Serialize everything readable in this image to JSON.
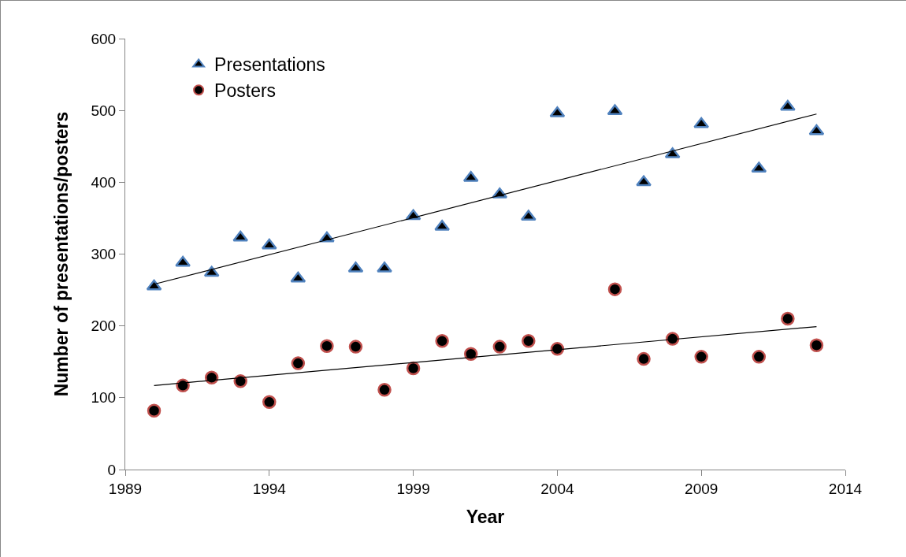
{
  "chart_data": {
    "type": "scatter",
    "xlabel": "Year",
    "ylabel": "Number of presentations/posters",
    "xlim": [
      1989,
      2014
    ],
    "xticks": [
      1989,
      1994,
      1999,
      2004,
      2009,
      2014
    ],
    "ylim": [
      0,
      600
    ],
    "yticks": [
      0,
      100,
      200,
      300,
      400,
      500,
      600
    ],
    "grid": false,
    "legend": "top left",
    "series": [
      {
        "name": "Presentations",
        "marker": "triangle",
        "color": "#4f81bd",
        "x": [
          1990,
          1991,
          1992,
          1993,
          1994,
          1995,
          1996,
          1997,
          1998,
          1999,
          2000,
          2001,
          2002,
          2003,
          2004,
          2006,
          2007,
          2008,
          2009,
          2011,
          2012,
          2013
        ],
        "values": [
          255,
          288,
          274,
          323,
          312,
          266,
          322,
          280,
          280,
          353,
          338,
          406,
          383,
          352,
          496,
          499,
          400,
          439,
          481,
          419,
          505,
          471
        ]
      },
      {
        "name": "Posters",
        "marker": "circle",
        "color": "#c0504d",
        "x": [
          1990,
          1991,
          1992,
          1993,
          1994,
          1995,
          1996,
          1997,
          1998,
          1999,
          2000,
          2001,
          2002,
          2003,
          2004,
          2006,
          2007,
          2008,
          2009,
          2011,
          2012,
          2013
        ],
        "values": [
          82,
          117,
          128,
          123,
          94,
          148,
          172,
          171,
          111,
          141,
          179,
          161,
          171,
          179,
          168,
          251,
          154,
          182,
          157,
          157,
          210,
          173
        ]
      },
      {
        "type": "line",
        "marker": "none",
        "line_style": "solid",
        "color": "#000000",
        "x": [
          1990,
          2013
        ],
        "values": [
          258,
          495
        ]
      },
      {
        "type": "line",
        "marker": "none",
        "line_style": "solid",
        "color": "#000000",
        "x": [
          1990,
          2013
        ],
        "values": [
          117,
          199
        ]
      }
    ]
  }
}
